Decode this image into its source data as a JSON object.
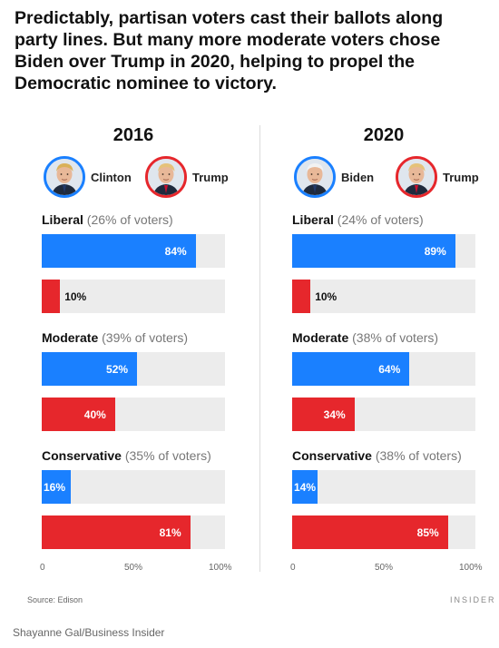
{
  "headline": "Predictably, partisan voters cast their ballots along party lines. But many more moderate voters chose Biden over Trump in 2020, helping to propel the Democratic nominee to victory.",
  "source": "Source: Edison",
  "brand": "INSIDER",
  "credit": "Shayanne Gal/Business Insider",
  "colors": {
    "dem": "#1a80ff",
    "rep": "#e6272c",
    "track": "#ececec"
  },
  "chart_data": [
    {
      "type": "bar",
      "title": "2016",
      "candidates": [
        {
          "name": "Clinton",
          "party": "dem",
          "icon": "clinton-portrait-icon"
        },
        {
          "name": "Trump",
          "party": "rep",
          "icon": "trump-portrait-icon"
        }
      ],
      "groups": [
        {
          "name": "Liberal",
          "share": "(26% of voters)",
          "values": [
            84,
            10
          ]
        },
        {
          "name": "Moderate",
          "share": "(39% of voters)",
          "values": [
            52,
            40
          ]
        },
        {
          "name": "Conservative",
          "share": "(35% of voters)",
          "values": [
            16,
            81
          ]
        }
      ],
      "xlim": [
        0,
        100
      ],
      "xticks": [
        "0",
        "50%",
        "100%"
      ]
    },
    {
      "type": "bar",
      "title": "2020",
      "candidates": [
        {
          "name": "Biden",
          "party": "dem",
          "icon": "biden-portrait-icon"
        },
        {
          "name": "Trump",
          "party": "rep",
          "icon": "trump-portrait-icon"
        }
      ],
      "groups": [
        {
          "name": "Liberal",
          "share": "(24% of voters)",
          "values": [
            89,
            10
          ]
        },
        {
          "name": "Moderate",
          "share": "(38% of voters)",
          "values": [
            64,
            34
          ]
        },
        {
          "name": "Conservative",
          "share": "(38% of voters)",
          "values": [
            14,
            85
          ]
        }
      ],
      "xlim": [
        0,
        100
      ],
      "xticks": [
        "0",
        "50%",
        "100%"
      ]
    }
  ]
}
